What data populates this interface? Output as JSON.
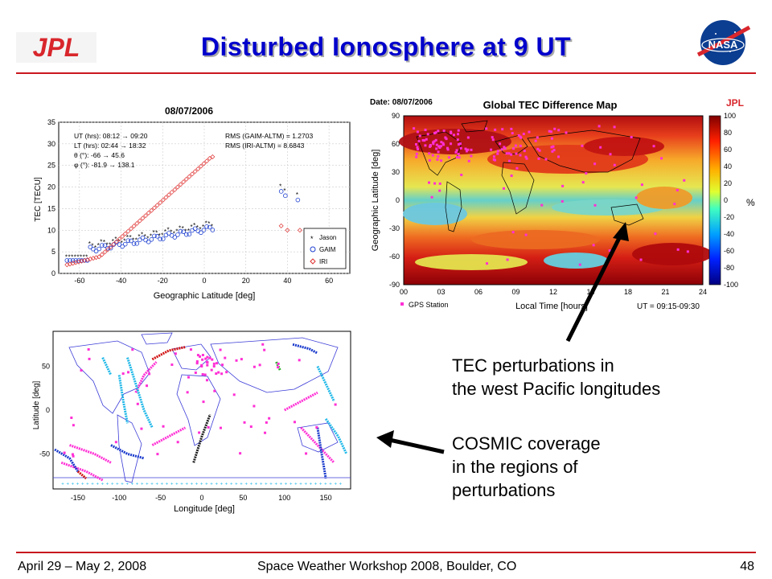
{
  "slide": {
    "title": "Disturbed Ionosphere at 9 UT",
    "footer_date": "April 29 – May 2, 2008",
    "footer_event": "Space Weather Workshop 2008, Boulder, CO",
    "page_number": "48",
    "caption_1": [
      "TEC perturbations in",
      "the west Pacific longitudes"
    ],
    "caption_2": [
      "COSMIC coverage",
      "in the regions of",
      "perturbations"
    ],
    "colors": {
      "title": "#0000cc",
      "rule": "#c8181e",
      "jpl": "#d8262c",
      "nasa_blue": "#0b3d91"
    }
  },
  "logos": {
    "jpl": "JPL",
    "nasa": "NASA"
  },
  "tec_plot": {
    "title": "08/07/2006",
    "info": [
      "UT (hrs):  08:12 → 09:20",
      "LT (hrs):  02:44 → 18:32",
      "θ (°):      -66 → 45.6",
      "φ (°):      -81.9 → 138.1"
    ],
    "rms": [
      "RMS (GAIM-ALTM) = 1.2703",
      "RMS (IRI-ALTM) = 8.6843"
    ],
    "xlabel": "Geographic Latitude [deg]",
    "ylabel": "TEC [TECU]",
    "xticks": [
      "-60",
      "-40",
      "-20",
      "0",
      "20",
      "40",
      "60"
    ],
    "yticks": [
      "35",
      "30",
      "25",
      "20",
      "15",
      "10",
      "5",
      "0"
    ],
    "legend": [
      "Jason",
      "GAIM",
      "IRI"
    ]
  },
  "tec_map": {
    "date": "Date: 08/07/2006",
    "title": "Global TEC Difference Map",
    "brand": "JPL",
    "ylabel": "Geographic Latitude [deg]",
    "xlabel": "Local Time [hours]",
    "yticks": [
      "90",
      "60",
      "30",
      "0",
      "-30",
      "-60",
      "-90"
    ],
    "xticks": [
      "00",
      "03",
      "06",
      "09",
      "12",
      "15",
      "18",
      "21",
      "24"
    ],
    "cbar_ticks": [
      "100",
      "80",
      "60",
      "40",
      "20",
      "0",
      "-20",
      "-40",
      "-60",
      "-80",
      "-100"
    ],
    "cbar_unit": "%",
    "legend": "GPS Station",
    "ut": "UT = 09:15-09:30"
  },
  "cosmic_map": {
    "ylabel": "Latitude [deg]",
    "xlabel": "Longitude [deg]",
    "yticks": [
      "50",
      "0",
      "-50"
    ],
    "xticks": [
      "-150",
      "-100",
      "-50",
      "0",
      "50",
      "100",
      "150"
    ]
  }
}
